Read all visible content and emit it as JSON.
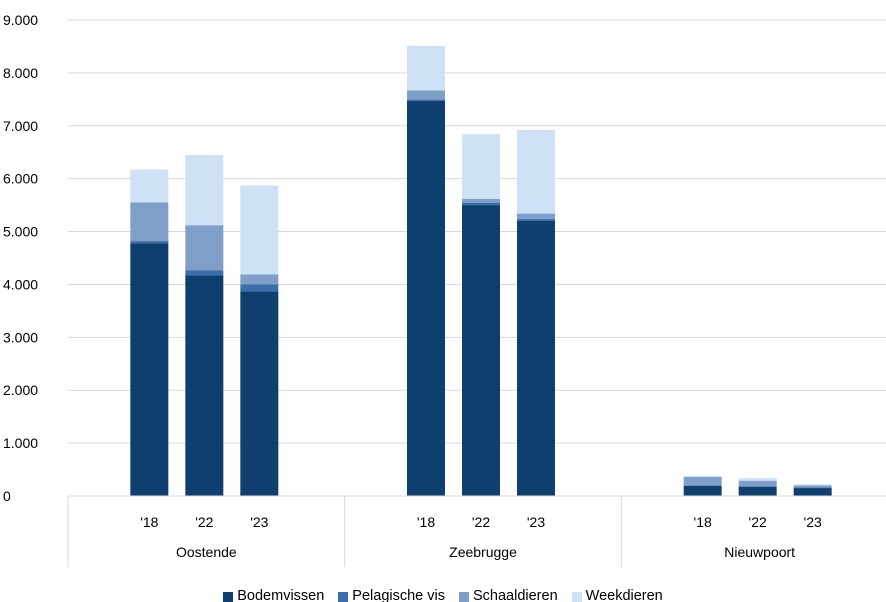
{
  "chart_data": {
    "type": "bar",
    "stacked": true,
    "groups": [
      {
        "name": "Oostende",
        "categories": [
          "'18",
          "'22",
          "'23"
        ]
      },
      {
        "name": "Zeebrugge",
        "categories": [
          "'18",
          "'22",
          "'23"
        ]
      },
      {
        "name": "Nieuwpoort",
        "categories": [
          "'18",
          "'22",
          "'23"
        ]
      }
    ],
    "series": [
      {
        "name": "Bodemvissen",
        "color": "#0f3f6e",
        "values": [
          4780,
          4170,
          3870,
          7470,
          5500,
          5200,
          190,
          170,
          150
        ]
      },
      {
        "name": "Pelagische vis",
        "color": "#3a6fab",
        "values": [
          40,
          100,
          130,
          30,
          40,
          40,
          10,
          10,
          10
        ]
      },
      {
        "name": "Schaaldieren",
        "color": "#7f9ec8",
        "values": [
          730,
          850,
          190,
          170,
          80,
          100,
          160,
          110,
          40
        ]
      },
      {
        "name": "Weekdieren",
        "color": "#cfe2f5",
        "values": [
          620,
          1330,
          1680,
          840,
          1220,
          1580,
          20,
          50,
          20
        ]
      }
    ],
    "ylim": [
      0,
      9000
    ],
    "yticks": [
      "0",
      "1.000",
      "2.000",
      "3.000",
      "4.000",
      "5.000",
      "6.000",
      "7.000",
      "8.000",
      "9.000"
    ],
    "grid": true,
    "legend_position": "bottom",
    "title": "",
    "xlabel": "",
    "ylabel": ""
  }
}
